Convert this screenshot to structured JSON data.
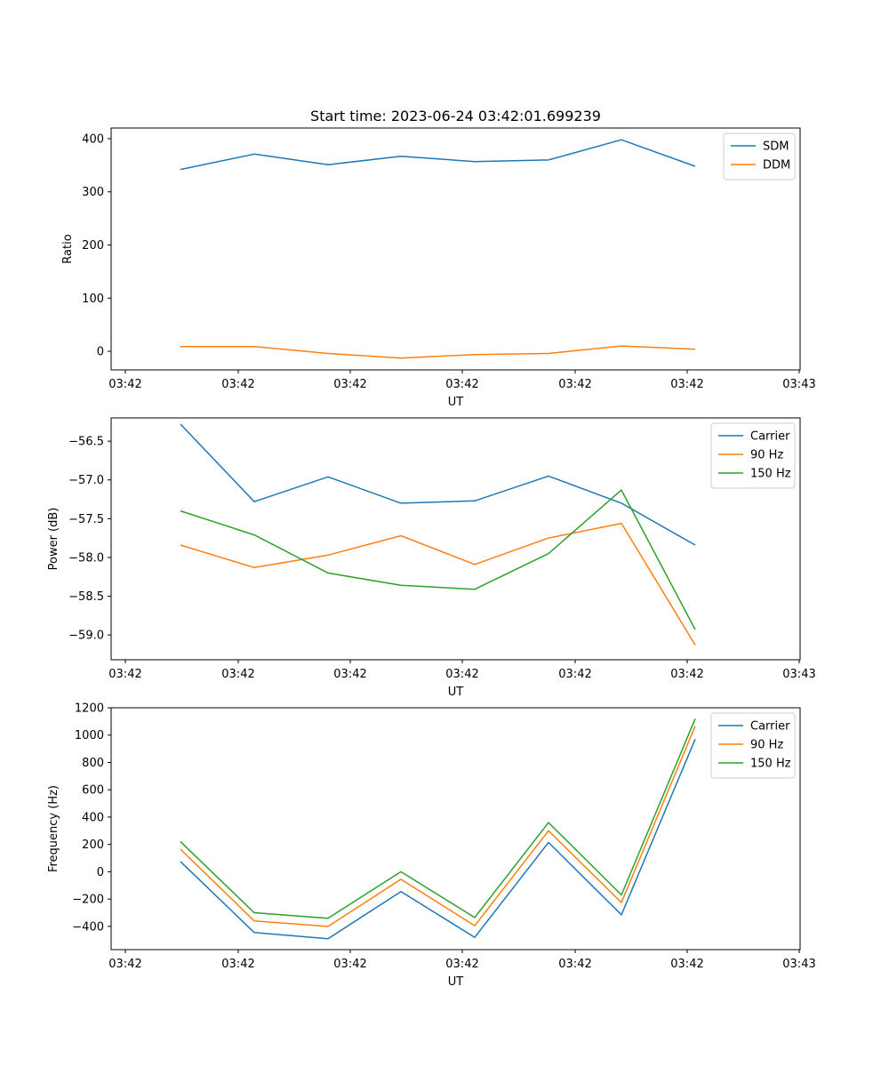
{
  "figure": {
    "title": "Start time: 2023-06-24 03:42:01.699239"
  },
  "chart_data": [
    {
      "type": "line",
      "title": "Start time: 2023-06-24 03:42:01.699239",
      "xlabel": "UT",
      "ylabel": "Ratio",
      "x_tick_labels": [
        "03:42",
        "03:42",
        "03:42",
        "03:42",
        "03:42",
        "03:42",
        "03:43"
      ],
      "y_ticks": [
        0,
        100,
        200,
        300,
        400
      ],
      "ylim": [
        -35,
        420
      ],
      "grid": false,
      "legend_position": "top-right",
      "series": [
        {
          "name": "SDM",
          "color": "#1f77b4",
          "values": [
            342,
            371,
            351,
            367,
            357,
            360,
            398,
            348
          ]
        },
        {
          "name": "DDM",
          "color": "#ff7f0e",
          "values": [
            9,
            9,
            -4,
            -13,
            -6,
            -4,
            10,
            4
          ]
        }
      ]
    },
    {
      "type": "line",
      "xlabel": "UT",
      "ylabel": "Power (dB)",
      "x_tick_labels": [
        "03:42",
        "03:42",
        "03:42",
        "03:42",
        "03:42",
        "03:42",
        "03:43"
      ],
      "y_ticks": [
        -56.5,
        -57.0,
        -57.5,
        -58.0,
        -58.5,
        -59.0
      ],
      "y_tick_labels": [
        "−56.5",
        "−57.0",
        "−57.5",
        "−58.0",
        "−58.5",
        "−59.0"
      ],
      "ylim": [
        -59.32,
        -56.2
      ],
      "grid": false,
      "legend_position": "top-right",
      "series": [
        {
          "name": "Carrier",
          "color": "#1f77b4",
          "values": [
            -56.28,
            -57.28,
            -56.96,
            -57.3,
            -57.27,
            -56.95,
            -57.3,
            -57.84
          ]
        },
        {
          "name": "90 Hz",
          "color": "#ff7f0e",
          "values": [
            -57.84,
            -58.13,
            -57.97,
            -57.72,
            -58.09,
            -57.75,
            -57.56,
            -59.13
          ]
        },
        {
          "name": "150 Hz",
          "color": "#2ca02c",
          "values": [
            -57.4,
            -57.71,
            -58.2,
            -58.36,
            -58.41,
            -57.95,
            -57.13,
            -58.93
          ]
        }
      ]
    },
    {
      "type": "line",
      "xlabel": "UT",
      "ylabel": "Frequency (Hz)",
      "x_tick_labels": [
        "03:42",
        "03:42",
        "03:42",
        "03:42",
        "03:42",
        "03:42",
        "03:43"
      ],
      "y_ticks": [
        -400,
        -200,
        0,
        200,
        400,
        600,
        800,
        1000,
        1200
      ],
      "y_tick_labels": [
        "−400",
        "−200",
        "0",
        "200",
        "400",
        "600",
        "800",
        "1000",
        "1200"
      ],
      "ylim": [
        -570,
        1200
      ],
      "grid": false,
      "legend_position": "top-right",
      "series": [
        {
          "name": "Carrier",
          "color": "#1f77b4",
          "values": [
            75,
            -445,
            -490,
            -145,
            -480,
            215,
            -315,
            970
          ]
        },
        {
          "name": "90 Hz",
          "color": "#ff7f0e",
          "values": [
            165,
            -360,
            -400,
            -55,
            -395,
            300,
            -225,
            1065
          ]
        },
        {
          "name": "150 Hz",
          "color": "#2ca02c",
          "values": [
            220,
            -300,
            -340,
            0,
            -335,
            360,
            -170,
            1120
          ]
        }
      ]
    }
  ]
}
